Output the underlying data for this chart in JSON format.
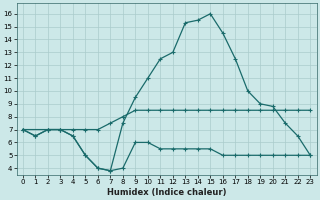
{
  "xlabel": "Humidex (Indice chaleur)",
  "bg_color": "#cce8e8",
  "grid_color": "#aacccc",
  "line_color": "#1a6b6b",
  "xlim": [
    -0.5,
    23.5
  ],
  "ylim": [
    3.5,
    16.8
  ],
  "xticks": [
    0,
    1,
    2,
    3,
    4,
    5,
    6,
    7,
    8,
    9,
    10,
    11,
    12,
    13,
    14,
    15,
    16,
    17,
    18,
    19,
    20,
    21,
    22,
    23
  ],
  "yticks": [
    4,
    5,
    6,
    7,
    8,
    9,
    10,
    11,
    12,
    13,
    14,
    15,
    16
  ],
  "line1_x": [
    0,
    1,
    2,
    3,
    4,
    5,
    6,
    7,
    8,
    9,
    10,
    11,
    12,
    13,
    14,
    15,
    16,
    17,
    18,
    19,
    20,
    21,
    22,
    23
  ],
  "line1_y": [
    7.0,
    6.5,
    7.0,
    7.0,
    7.0,
    7.0,
    7.0,
    7.5,
    8.0,
    8.5,
    8.5,
    8.5,
    8.5,
    8.5,
    8.5,
    8.5,
    8.5,
    8.5,
    8.5,
    8.5,
    8.5,
    8.5,
    8.5,
    8.5
  ],
  "line2_x": [
    0,
    1,
    2,
    3,
    4,
    5,
    6,
    7,
    8,
    9,
    10,
    11,
    12,
    13,
    14,
    15,
    16,
    17,
    18,
    19,
    20,
    21,
    22,
    23
  ],
  "line2_y": [
    7.0,
    6.5,
    7.0,
    7.0,
    6.5,
    5.0,
    4.0,
    3.8,
    4.0,
    6.0,
    6.0,
    5.5,
    5.5,
    5.5,
    5.5,
    5.5,
    5.0,
    5.0,
    5.0,
    5.0,
    5.0,
    5.0,
    5.0,
    5.0
  ],
  "line3_x": [
    0,
    2,
    3,
    4,
    5,
    6,
    7,
    8,
    9,
    10,
    11,
    12,
    13,
    14,
    15,
    16,
    17,
    18,
    19,
    20,
    21,
    22,
    23
  ],
  "line3_y": [
    7.0,
    7.0,
    7.0,
    6.5,
    5.0,
    4.0,
    3.8,
    7.5,
    9.5,
    11.0,
    12.5,
    13.0,
    15.3,
    15.5,
    16.0,
    14.5,
    12.5,
    10.0,
    9.0,
    8.8,
    7.5,
    6.5,
    5.0
  ]
}
